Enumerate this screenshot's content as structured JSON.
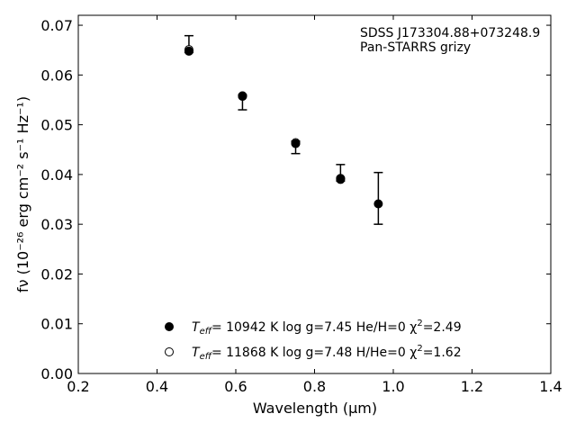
{
  "chart_data": {
    "type": "scatter",
    "annotation_lines": [
      "SDSS J173304.88+073248.9",
      "Pan-STARRS grizy"
    ],
    "xlabel": "Wavelength (μm)",
    "ylabel": "fν (10⁻²⁶ erg cm⁻² s⁻¹ Hz⁻¹)",
    "xlim": [
      0.2,
      1.4
    ],
    "ylim": [
      0.0,
      0.072
    ],
    "x_ticks": [
      0.2,
      0.4,
      0.6,
      0.8,
      1.0,
      1.2,
      1.4
    ],
    "x_tick_labels": [
      "0.2",
      "0.4",
      "0.6",
      "0.8",
      "1.0",
      "1.2",
      "1.4"
    ],
    "y_ticks": [
      0.0,
      0.01,
      0.02,
      0.03,
      0.04,
      0.05,
      0.06,
      0.07
    ],
    "y_tick_labels": [
      "0.00",
      "0.01",
      "0.02",
      "0.03",
      "0.04",
      "0.05",
      "0.06",
      "0.07"
    ],
    "grid": false,
    "legend_placement": "lower-center",
    "observed": {
      "x": [
        0.481,
        0.617,
        0.752,
        0.866,
        0.962
      ],
      "y": [
        0.0648,
        0.0557,
        0.0462,
        0.0392,
        0.0341
      ],
      "err_low": [
        0.0003,
        0.0027,
        0.002,
        0.0005,
        0.0041
      ],
      "err_high": [
        0.0031,
        0.0003,
        0.0005,
        0.0028,
        0.0063
      ]
    },
    "series": [
      {
        "label_parts": [
          "T",
          "eff",
          "= 10942 K  log g=7.45  He/H=0  χ",
          "2",
          "=2.49"
        ],
        "marker": "filled",
        "x": [
          0.481,
          0.617,
          0.752,
          0.866
        ],
        "y": [
          0.0648,
          0.0558,
          0.0463,
          0.039
        ]
      },
      {
        "label_parts": [
          "T",
          "eff",
          "= 11868 K  log g=7.48  H/He=0  χ",
          "2",
          "=1.62"
        ],
        "marker": "open",
        "x": [
          0.481,
          0.617,
          0.752,
          0.866
        ],
        "y": [
          0.0651,
          0.0558,
          0.0464,
          0.0392
        ]
      }
    ]
  }
}
